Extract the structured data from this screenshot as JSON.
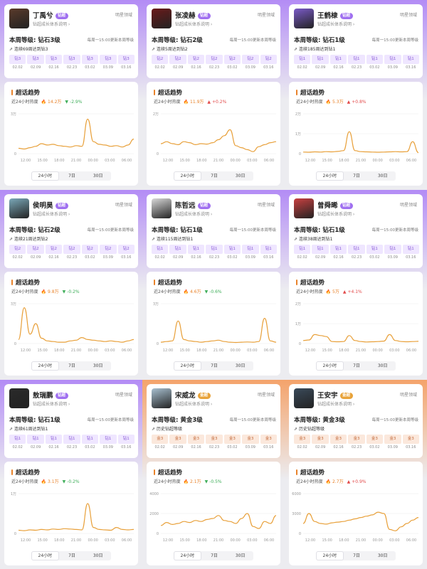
{
  "common": {
    "header_star": "明星领域",
    "subtitle": "钻超成长体系说明",
    "update_note": "每周一15:00更新本周等级",
    "trend_title": "超话趋势",
    "heat_label": "近24小时热度",
    "tabs": [
      "24小时",
      "7日",
      "30日"
    ],
    "time_ticks": [
      "12:00",
      "15:00",
      "18:00",
      "21:00",
      "00:00",
      "03:00",
      "06:00"
    ],
    "dates": [
      "02.02",
      "02.09",
      "02.16",
      "02.23",
      "03.02",
      "03.09",
      "03.16"
    ]
  },
  "colors": {
    "bg_purple": "#b38cf5",
    "bg_orange": "#f4a36b",
    "chip_purple_bg": "#efe6ff",
    "chip_purple_text": "#8a5cd8",
    "chip_gold_bg": "#fbe8dc",
    "chip_gold_text": "#c46a3a",
    "line": "#e8a03a",
    "accent": "#e8822a"
  },
  "cards": [
    {
      "name": "丁禹兮",
      "badge": "钻超",
      "badge_color": "#a070f0",
      "avatar_bg": "#5a3a2a",
      "level": "本周等级: 钻石3级",
      "streak": "连续69周达到钻3",
      "chips": [
        "钻3",
        "钻3",
        "钻3",
        "钻3",
        "钻3",
        "钻3",
        "钻3"
      ],
      "tier": "diamond",
      "heat": "14.2万",
      "change": "-2.9%",
      "direction": "down",
      "y_ticks": [
        "3万",
        "0"
      ],
      "y_max": 30000,
      "series": [
        4000,
        3500,
        4500,
        5500,
        7500,
        6500,
        7000,
        6000,
        5500,
        5000,
        6000,
        5500,
        26000,
        9000,
        7000,
        6500,
        5500,
        6000,
        5000,
        6500,
        11000
      ]
    },
    {
      "name": "张凌赫",
      "badge": "钻超",
      "badge_color": "#a070f0",
      "avatar_bg": "#6a1a1a",
      "level": "本周等级: 钻石2级",
      "streak": "连续5周达到钻2",
      "chips": [
        "钻2",
        "钻2",
        "钻2",
        "钻2",
        "钻2",
        "钻2",
        "钻2"
      ],
      "tier": "diamond",
      "heat": "11.9万",
      "change": "+0.2%",
      "direction": "up",
      "y_ticks": [
        "2万",
        "0"
      ],
      "y_max": 20000,
      "series": [
        5000,
        6000,
        5000,
        4500,
        6000,
        5500,
        4500,
        5000,
        4800,
        5500,
        7000,
        9000,
        12000,
        4000,
        3000,
        2000,
        1000,
        3500,
        4500,
        5500,
        6000
      ]
    },
    {
      "name": "王鹤棣",
      "badge": "钻超",
      "badge_color": "#a070f0",
      "avatar_bg": "#7a5ac8",
      "level": "本周等级: 钻石1级",
      "streak": "连续185周达到钻1",
      "chips": [
        "钻1",
        "钻1",
        "钻1",
        "钻1",
        "钻1",
        "钻1",
        "钻1"
      ],
      "tier": "diamond",
      "heat": "5.3万",
      "change": "+0.8%",
      "direction": "up",
      "y_ticks": [
        "2万",
        "1万",
        "0"
      ],
      "y_max": 20000,
      "series": [
        800,
        700,
        900,
        800,
        1000,
        900,
        1100,
        1500,
        11000,
        1500,
        1000,
        900,
        800,
        700,
        800,
        900,
        1000,
        900,
        1000,
        6000,
        500
      ]
    },
    {
      "name": "侯明昊",
      "badge": "钻超",
      "badge_color": "#a070f0",
      "avatar_bg": "#7aa8b8",
      "level": "本周等级: 钻石2级",
      "streak": "连续21周达到钻2",
      "chips": [
        "钻2",
        "钻2",
        "钻2",
        "钻2",
        "钻2",
        "钻2",
        "钻2"
      ],
      "tier": "diamond",
      "heat": "9.8万",
      "change": "-0.2%",
      "direction": "down",
      "y_ticks": [
        "3万",
        "0"
      ],
      "y_max": 30000,
      "series": [
        3000,
        27000,
        7000,
        15000,
        4000,
        2000,
        1500,
        1000,
        1000,
        2000,
        2500,
        4500,
        3000,
        2500,
        2000,
        1500,
        2000,
        1500,
        1000,
        2000,
        3000
      ]
    },
    {
      "name": "陈哲远",
      "badge": "钻超",
      "badge_color": "#a070f0",
      "avatar_bg": "#d8d8d8",
      "level": "本周等级: 钻石1级",
      "streak": "连续115周达到钻1",
      "chips": [
        "钻1",
        "钻1",
        "钻1",
        "钻1",
        "钻1",
        "钻1",
        "钻1"
      ],
      "tier": "diamond",
      "heat": "4.6万",
      "change": "-0.6%",
      "direction": "down",
      "y_ticks": [
        "3万",
        "0"
      ],
      "y_max": 30000,
      "series": [
        1000,
        1500,
        2000,
        17000,
        3000,
        2000,
        1500,
        1000,
        1500,
        2000,
        2500,
        1500,
        1000,
        800,
        1000,
        1200,
        1000,
        1500,
        19000,
        2000,
        1000
      ]
    },
    {
      "name": "曾舜晞",
      "badge": "钻超",
      "badge_color": "#a070f0",
      "avatar_bg": "#c84040",
      "level": "本周等级: 钻石1级",
      "streak": "连续38周达到钻1",
      "chips": [
        "钻1",
        "钻1",
        "钻1",
        "钻1",
        "钻1",
        "钻1",
        "钻1"
      ],
      "tier": "diamond",
      "heat": "5万",
      "change": "+4.1%",
      "direction": "up",
      "y_ticks": [
        "2万",
        "1万",
        "0"
      ],
      "y_max": 20000,
      "series": [
        1500,
        1800,
        4500,
        4000,
        3500,
        1000,
        900,
        1000,
        4000,
        1500,
        1000,
        800,
        900,
        1000,
        1200,
        4500,
        1500,
        1000,
        900,
        1000,
        1100
      ]
    },
    {
      "name": "敖瑞鹏",
      "badge": "钻超",
      "badge_color": "#a070f0",
      "avatar_bg": "#2a2a2a",
      "level": "本周等级: 钻石1级",
      "streak": "连续61周达到钻1",
      "chips": [
        "钻1",
        "钻1",
        "钻1",
        "钻1",
        "钻1",
        "钻1",
        "钻1"
      ],
      "tier": "diamond",
      "heat": "3.1万",
      "change": "-0.2%",
      "direction": "down",
      "y_ticks": [
        "1万",
        "0"
      ],
      "y_max": 10000,
      "series": [
        800,
        700,
        900,
        800,
        1000,
        900,
        1100,
        1000,
        1200,
        1100,
        1000,
        900,
        7500,
        1500,
        1000,
        900,
        800,
        1500,
        1000,
        900,
        1000
      ]
    },
    {
      "name": "宋威龙",
      "badge": "金超",
      "badge_color": "#e8a33a",
      "avatar_bg": "#a8c0d0",
      "level": "本周等级: 黄金3级",
      "streak": "历史钻超等级",
      "chips": [
        "金3",
        "金3",
        "金3",
        "金3",
        "金3",
        "金3",
        "金3"
      ],
      "tier": "gold",
      "heat": "2.1万",
      "change": "-0.5%",
      "direction": "down",
      "y_ticks": [
        "4000",
        "2000",
        "0"
      ],
      "y_max": 4000,
      "series": [
        800,
        1100,
        900,
        1000,
        1200,
        1100,
        1300,
        1200,
        1400,
        1500,
        1800,
        1300,
        1200,
        1000,
        1500,
        2000,
        700,
        500,
        1200,
        1000,
        1800
      ]
    },
    {
      "name": "王安宇",
      "badge": "金超",
      "badge_color": "#e8a33a",
      "avatar_bg": "#3a4a5a",
      "level": "本周等级: 黄金3级",
      "streak": "历史钻超等级",
      "chips": [
        "金3",
        "金3",
        "金3",
        "金3",
        "金3",
        "金3",
        "金3"
      ],
      "tier": "gold",
      "heat": "2.7万",
      "change": "+0.9%",
      "direction": "up",
      "y_ticks": [
        "6000",
        "3000",
        "0"
      ],
      "y_max": 6000,
      "series": [
        1500,
        3000,
        1800,
        1500,
        1400,
        1600,
        1700,
        1800,
        2000,
        2200,
        2400,
        2600,
        2800,
        3200,
        3000,
        600,
        400,
        1000,
        1500,
        2000,
        2400
      ]
    }
  ]
}
